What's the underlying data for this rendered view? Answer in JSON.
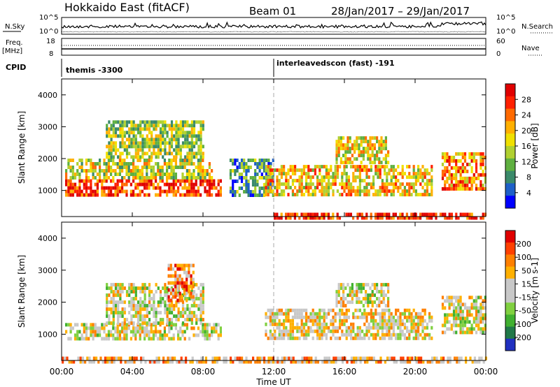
{
  "header": {
    "title": "Hokkaido East (fitACF)",
    "beam": "Beam 01",
    "daterange": "28/Jan/2017 – 29/Jan/2017"
  },
  "strips": {
    "nsky_label": "N.Sky",
    "nsearch_label": "N.Search",
    "noise_left_ticks": [
      "10^5",
      "10^0"
    ],
    "noise_right_ticks": [
      "10^5",
      "10^0"
    ],
    "freq_label": "Freq.",
    "freq_unit": "[MHz]",
    "freq_ticks": [
      "18",
      "8"
    ],
    "nave_label": "Nave",
    "nave_ticks": [
      "60",
      "0"
    ],
    "cpid_label": "CPID",
    "cpid_segments": [
      {
        "label": "themis -3300",
        "start_hour": 0
      },
      {
        "label": "interleavedscon (fast) -191",
        "start_hour": 12
      }
    ]
  },
  "chart_data": [
    {
      "type": "heatmap",
      "quantity": "power",
      "ylabel": "Slant Range [km]",
      "yticks": [
        1000,
        2000,
        3000,
        4000
      ],
      "ylim": [
        180,
        4500
      ],
      "xlim_hours": [
        0,
        24
      ],
      "colorbar_label": "Power [dB]",
      "colorbar_ticks": [
        "28",
        "24",
        "20",
        "16",
        "12",
        "8",
        "4"
      ],
      "colorbar_colors": [
        "#0000ff",
        "#1e60c8",
        "#3a8a6a",
        "#5fb040",
        "#b0d030",
        "#f0e000",
        "#ffb000",
        "#ff6a00",
        "#ff2000",
        "#e00000"
      ],
      "regions": [
        {
          "t0": 0.2,
          "t1": 9.0,
          "r0": 850,
          "r1": 1350,
          "level": 0.85
        },
        {
          "t0": 0.2,
          "t1": 8.5,
          "r0": 1350,
          "r1": 2000,
          "level": 0.5
        },
        {
          "t0": 2.5,
          "t1": 8.0,
          "r0": 2000,
          "r1": 3200,
          "level": 0.45
        },
        {
          "t0": 9.5,
          "t1": 12.0,
          "r0": 900,
          "r1": 2000,
          "level": 0.3
        },
        {
          "t0": 11.5,
          "t1": 21.0,
          "r0": 900,
          "r1": 1800,
          "level": 0.6
        },
        {
          "t0": 15.5,
          "t1": 18.5,
          "r0": 1900,
          "r1": 2700,
          "level": 0.55
        },
        {
          "t0": 21.5,
          "t1": 24.0,
          "r0": 1100,
          "r1": 2200,
          "level": 0.7
        },
        {
          "t0": 12.0,
          "t1": 24.0,
          "r0": 180,
          "r1": 300,
          "level": 0.9
        }
      ]
    },
    {
      "type": "heatmap",
      "quantity": "velocity",
      "ylabel": "Slant Range [km]",
      "yticks": [
        1000,
        2000,
        3000,
        4000
      ],
      "ylim": [
        180,
        4500
      ],
      "xlim_hours": [
        0,
        24
      ],
      "xticks": [
        "00:00",
        "04:00",
        "08:00",
        "12:00",
        "16:00",
        "20:00",
        "00:00"
      ],
      "xlabel": "Time UT",
      "colorbar_label": "Velocity [m s-1]",
      "colorbar_ticks": [
        "200",
        "100",
        "50",
        "15",
        "-15",
        "-50",
        "-100",
        "-200"
      ],
      "colorbar_colors": [
        "#2030c0",
        "#207848",
        "#40b030",
        "#80d040",
        "#c8c8c8",
        "#c8c8c8",
        "#ffb000",
        "#ff8000",
        "#ff4000",
        "#e00000"
      ],
      "regions": [
        {
          "t0": 0.2,
          "t1": 9.0,
          "r0": 850,
          "r1": 1350,
          "level": 0.5
        },
        {
          "t0": 2.5,
          "t1": 8.0,
          "r0": 1350,
          "r1": 2600,
          "level": 0.5
        },
        {
          "t0": 6.0,
          "t1": 7.5,
          "r0": 2000,
          "r1": 3200,
          "level": 0.75
        },
        {
          "t0": 11.5,
          "t1": 21.0,
          "r0": 900,
          "r1": 1800,
          "level": 0.55
        },
        {
          "t0": 15.5,
          "t1": 18.5,
          "r0": 1900,
          "r1": 2600,
          "level": 0.5
        },
        {
          "t0": 21.5,
          "t1": 24.0,
          "r0": 1100,
          "r1": 2200,
          "level": 0.5
        },
        {
          "t0": 0.0,
          "t1": 24.0,
          "r0": 180,
          "r1": 300,
          "level": 0.65
        }
      ]
    }
  ]
}
